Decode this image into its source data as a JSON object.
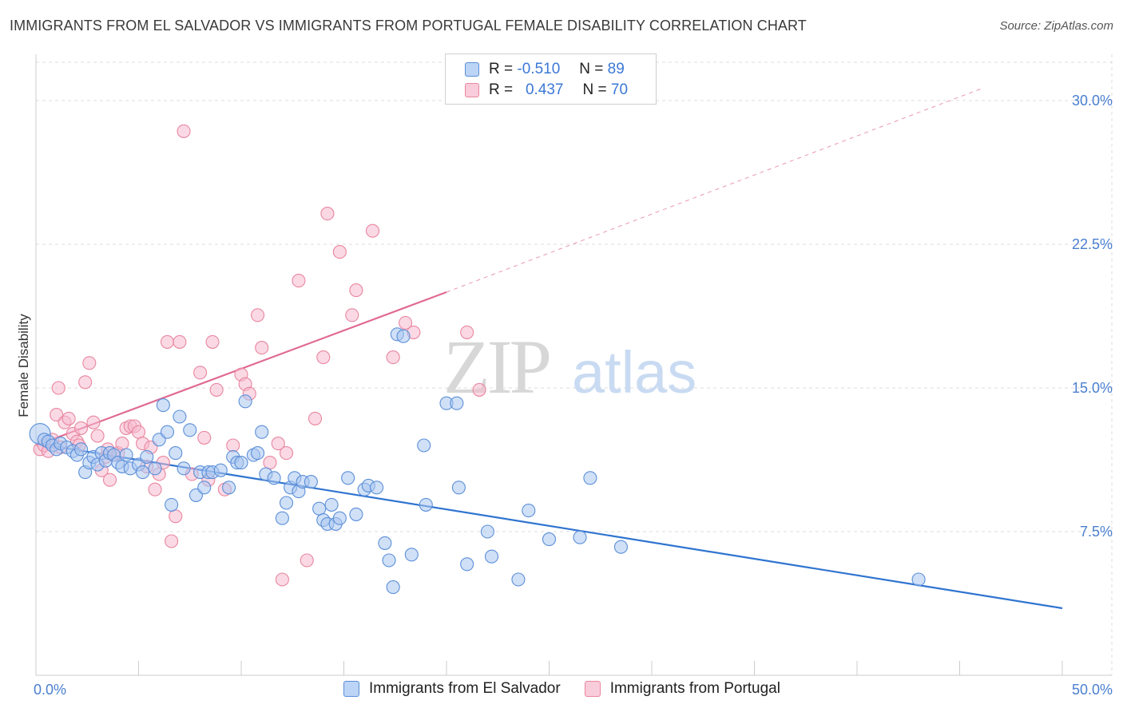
{
  "title": "IMMIGRANTS FROM EL SALVADOR VS IMMIGRANTS FROM PORTUGAL FEMALE DISABILITY CORRELATION CHART",
  "source": "Source: ZipAtlas.com",
  "watermark": {
    "zip": "ZIP",
    "atlas": "atlas"
  },
  "colors": {
    "blue_fill": "#a9c7f0",
    "blue_stroke": "#5b8fd8",
    "blue_line": "#2f74d0",
    "pink_fill": "#f6b9cf",
    "pink_stroke": "#e9869f",
    "pink_line": "#e06a92",
    "grid": "#dddddd",
    "tick_text": "#4a7fd0"
  },
  "legend": {
    "rows": [
      {
        "r_label": "R =",
        "r_value": "-0.510",
        "n_label": "N =",
        "n_value": "89",
        "series": "blue"
      },
      {
        "r_label": "R =",
        "r_value": "0.437",
        "n_label": "N =",
        "n_value": "70",
        "series": "pink"
      }
    ]
  },
  "chart_data": {
    "type": "scatter",
    "title": "IMMIGRANTS FROM EL SALVADOR VS IMMIGRANTS FROM PORTUGAL FEMALE DISABILITY CORRELATION CHART",
    "xlabel": "",
    "ylabel": "Female Disability",
    "xlim": [
      0,
      50
    ],
    "ylim": [
      0,
      32
    ],
    "x_tick_labels": [
      "0.0%",
      "50.0%"
    ],
    "y_ticks": [
      7.5,
      15.0,
      22.5,
      30.0
    ],
    "y_tick_labels": [
      "7.5%",
      "15.0%",
      "22.5%",
      "30.0%"
    ],
    "grid": true,
    "legend_position": "bottom",
    "series": [
      {
        "name": "Immigrants from El Salvador",
        "color": "blue",
        "trend": {
          "x0": 0,
          "y0": 12.1,
          "x1": 50,
          "y1": 3.5,
          "dashed_to": null
        },
        "points": [
          [
            0.2,
            12.6
          ],
          [
            0.4,
            12.3
          ],
          [
            0.6,
            12.2
          ],
          [
            0.8,
            12.0
          ],
          [
            1.0,
            11.8
          ],
          [
            1.2,
            12.1
          ],
          [
            1.5,
            11.9
          ],
          [
            1.8,
            11.7
          ],
          [
            2.0,
            11.5
          ],
          [
            2.2,
            11.8
          ],
          [
            2.4,
            10.6
          ],
          [
            2.6,
            11.1
          ],
          [
            2.8,
            11.4
          ],
          [
            3.0,
            11.0
          ],
          [
            3.2,
            11.6
          ],
          [
            3.4,
            11.2
          ],
          [
            3.6,
            11.6
          ],
          [
            3.8,
            11.5
          ],
          [
            4.0,
            11.1
          ],
          [
            4.2,
            10.9
          ],
          [
            4.4,
            11.5
          ],
          [
            4.6,
            10.8
          ],
          [
            5.0,
            11.0
          ],
          [
            5.2,
            10.6
          ],
          [
            5.4,
            11.4
          ],
          [
            5.8,
            10.8
          ],
          [
            6.0,
            12.3
          ],
          [
            6.2,
            14.1
          ],
          [
            6.4,
            12.7
          ],
          [
            6.6,
            8.9
          ],
          [
            6.8,
            11.6
          ],
          [
            7.0,
            13.5
          ],
          [
            7.2,
            10.8
          ],
          [
            7.5,
            12.8
          ],
          [
            7.8,
            9.4
          ],
          [
            8.0,
            10.6
          ],
          [
            8.2,
            9.8
          ],
          [
            8.4,
            10.6
          ],
          [
            8.6,
            10.6
          ],
          [
            9.0,
            10.7
          ],
          [
            9.4,
            9.8
          ],
          [
            9.6,
            11.4
          ],
          [
            9.8,
            11.1
          ],
          [
            10.0,
            11.1
          ],
          [
            10.2,
            14.3
          ],
          [
            10.6,
            11.5
          ],
          [
            10.8,
            11.6
          ],
          [
            11.0,
            12.7
          ],
          [
            11.2,
            10.5
          ],
          [
            11.6,
            10.3
          ],
          [
            12.0,
            8.2
          ],
          [
            12.2,
            9.0
          ],
          [
            12.4,
            9.8
          ],
          [
            12.6,
            10.3
          ],
          [
            12.8,
            9.6
          ],
          [
            13.0,
            10.1
          ],
          [
            13.4,
            10.1
          ],
          [
            13.8,
            8.7
          ],
          [
            14.0,
            8.1
          ],
          [
            14.2,
            7.9
          ],
          [
            14.4,
            8.9
          ],
          [
            14.6,
            7.9
          ],
          [
            14.8,
            8.2
          ],
          [
            15.2,
            10.3
          ],
          [
            15.6,
            8.4
          ],
          [
            16.0,
            9.7
          ],
          [
            16.2,
            9.9
          ],
          [
            16.6,
            9.8
          ],
          [
            17.0,
            6.9
          ],
          [
            17.2,
            6.0
          ],
          [
            17.4,
            4.6
          ],
          [
            17.6,
            17.8
          ],
          [
            17.9,
            17.7
          ],
          [
            18.3,
            6.3
          ],
          [
            18.9,
            12.0
          ],
          [
            19.0,
            8.9
          ],
          [
            20.0,
            14.2
          ],
          [
            20.5,
            14.2
          ],
          [
            20.6,
            9.8
          ],
          [
            21.0,
            5.8
          ],
          [
            22.0,
            7.5
          ],
          [
            22.2,
            6.2
          ],
          [
            23.5,
            5.0
          ],
          [
            24.0,
            8.6
          ],
          [
            25.0,
            7.1
          ],
          [
            26.5,
            7.2
          ],
          [
            27.0,
            10.3
          ],
          [
            28.5,
            6.7
          ],
          [
            43.0,
            5.0
          ]
        ]
      },
      {
        "name": "Immigrants from Portugal",
        "color": "pink",
        "trend": {
          "x0": 0,
          "y0": 12.0,
          "x1": 20,
          "y1": 20.0,
          "dashed_to": [
            46,
            30.6
          ]
        },
        "points": [
          [
            0.2,
            11.8
          ],
          [
            0.4,
            12.0
          ],
          [
            0.6,
            11.7
          ],
          [
            0.8,
            12.3
          ],
          [
            1.0,
            13.6
          ],
          [
            1.1,
            15.0
          ],
          [
            1.2,
            11.9
          ],
          [
            1.4,
            13.2
          ],
          [
            1.6,
            13.4
          ],
          [
            1.8,
            12.6
          ],
          [
            2.0,
            12.2
          ],
          [
            2.2,
            12.9
          ],
          [
            2.4,
            15.3
          ],
          [
            2.6,
            16.3
          ],
          [
            2.8,
            13.2
          ],
          [
            3.0,
            12.5
          ],
          [
            3.2,
            10.7
          ],
          [
            3.4,
            11.4
          ],
          [
            3.6,
            10.2
          ],
          [
            3.8,
            11.5
          ],
          [
            4.0,
            11.6
          ],
          [
            4.2,
            12.1
          ],
          [
            4.4,
            12.9
          ],
          [
            4.6,
            13.0
          ],
          [
            4.8,
            13.0
          ],
          [
            5.0,
            12.7
          ],
          [
            5.2,
            12.1
          ],
          [
            5.4,
            10.9
          ],
          [
            5.6,
            11.9
          ],
          [
            5.8,
            9.7
          ],
          [
            6.0,
            10.5
          ],
          [
            6.2,
            11.1
          ],
          [
            6.4,
            17.4
          ],
          [
            6.6,
            7.0
          ],
          [
            6.8,
            8.3
          ],
          [
            7.0,
            17.4
          ],
          [
            7.2,
            28.4
          ],
          [
            7.6,
            10.5
          ],
          [
            8.0,
            15.8
          ],
          [
            8.2,
            12.4
          ],
          [
            8.4,
            10.2
          ],
          [
            8.6,
            17.4
          ],
          [
            8.8,
            14.9
          ],
          [
            9.2,
            9.7
          ],
          [
            9.6,
            12.0
          ],
          [
            10.0,
            15.7
          ],
          [
            10.2,
            15.2
          ],
          [
            10.4,
            14.7
          ],
          [
            10.8,
            18.8
          ],
          [
            11.0,
            17.1
          ],
          [
            11.4,
            11.1
          ],
          [
            11.8,
            12.1
          ],
          [
            12.0,
            5.0
          ],
          [
            12.2,
            11.6
          ],
          [
            12.8,
            20.6
          ],
          [
            13.2,
            6.0
          ],
          [
            13.6,
            13.4
          ],
          [
            14.0,
            16.6
          ],
          [
            14.2,
            24.1
          ],
          [
            14.8,
            22.1
          ],
          [
            15.4,
            18.8
          ],
          [
            15.6,
            20.1
          ],
          [
            16.4,
            23.2
          ],
          [
            17.4,
            16.6
          ],
          [
            18.0,
            18.4
          ],
          [
            18.4,
            17.9
          ],
          [
            21.0,
            17.9
          ],
          [
            21.6,
            14.9
          ],
          [
            2.1,
            12.0
          ],
          [
            3.5,
            11.8
          ]
        ]
      }
    ]
  },
  "bottom_legend": [
    {
      "label": "Immigrants from El Salvador",
      "series": "blue"
    },
    {
      "label": "Immigrants from Portugal",
      "series": "pink"
    }
  ]
}
